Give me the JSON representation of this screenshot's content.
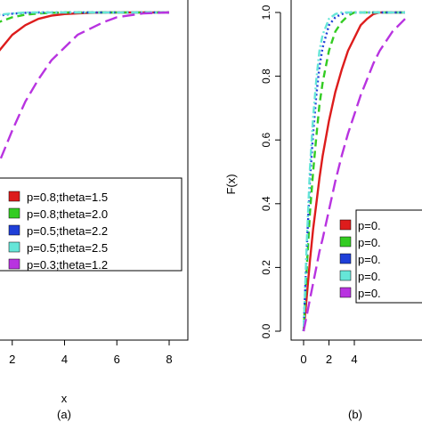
{
  "chart_data": [
    {
      "panel_label": "(a)",
      "type": "line",
      "xlabel": "x",
      "ylabel": "",
      "xlim": [
        0,
        8
      ],
      "ylim": [
        0,
        1
      ],
      "xticks": [
        "2",
        "4",
        "6",
        "8"
      ],
      "yticks": [],
      "legend_position": "bottom-right",
      "x": [
        0,
        0.25,
        0.5,
        0.75,
        1,
        1.25,
        1.5,
        2,
        2.5,
        3,
        3.5,
        4,
        4.5,
        5,
        5.5,
        6,
        7,
        8
      ],
      "series": [
        {
          "name": "p=0.8;theta=1.5",
          "color": "#dd1c1c",
          "dash": "solid",
          "values": [
            0,
            0.43,
            0.61,
            0.7,
            0.78,
            0.84,
            0.88,
            0.93,
            0.96,
            0.98,
            0.99,
            0.995,
            0.997,
            0.999,
            1.0,
            1.0,
            1.0,
            1.0
          ]
        },
        {
          "name": "p=0.8;theta=2.0",
          "color": "#33cc22",
          "dash": "dashed",
          "values": [
            0,
            0.62,
            0.79,
            0.87,
            0.92,
            0.95,
            0.97,
            0.985,
            0.993,
            0.997,
            0.999,
            1.0,
            1.0,
            1.0,
            1.0,
            1.0,
            1.0,
            1.0
          ]
        },
        {
          "name": "p=0.5;theta=2.2",
          "color": "#1f3fd8",
          "dash": "dotted",
          "values": [
            0,
            0.74,
            0.87,
            0.93,
            0.96,
            0.98,
            0.99,
            0.996,
            0.999,
            1.0,
            1.0,
            1.0,
            1.0,
            1.0,
            1.0,
            1.0,
            1.0,
            1.0
          ]
        },
        {
          "name": "p=0.5;theta=2.5",
          "color": "#66e6d8",
          "dash": "dotdash",
          "values": [
            0,
            0.77,
            0.89,
            0.94,
            0.97,
            0.985,
            0.993,
            0.997,
            1.0,
            1.0,
            1.0,
            1.0,
            1.0,
            1.0,
            1.0,
            1.0,
            1.0,
            1.0
          ]
        },
        {
          "name": "p=0.3;theta=1.2",
          "color": "#b833e0",
          "dash": "longdash",
          "values": [
            0,
            0.14,
            0.25,
            0.33,
            0.4,
            0.47,
            0.53,
            0.63,
            0.72,
            0.79,
            0.85,
            0.89,
            0.93,
            0.95,
            0.97,
            0.985,
            0.997,
            1.0
          ]
        }
      ]
    },
    {
      "panel_label": "(b)",
      "type": "line",
      "xlabel": "",
      "ylabel": "F(x)",
      "xlim": [
        0,
        8
      ],
      "ylim": [
        0,
        1
      ],
      "xticks": [
        "0",
        "2",
        "4"
      ],
      "yticks": [
        "0.0",
        "0.2",
        "0.4",
        "0.6",
        "0.8",
        "1.0"
      ],
      "legend_position": "bottom-right",
      "x": [
        0,
        0.25,
        0.5,
        0.75,
        1,
        1.25,
        1.5,
        2,
        2.5,
        3,
        3.5,
        4,
        4.5,
        5,
        5.5,
        6,
        7,
        8
      ],
      "series": [
        {
          "name": "p=0.",
          "color": "#dd1c1c",
          "dash": "solid",
          "values": [
            0,
            0.11,
            0.22,
            0.32,
            0.4,
            0.48,
            0.55,
            0.66,
            0.75,
            0.82,
            0.88,
            0.92,
            0.96,
            0.98,
            0.995,
            1.0,
            1.0,
            1.0
          ]
        },
        {
          "name": "p=0.",
          "color": "#33cc22",
          "dash": "dashed",
          "values": [
            0,
            0.2,
            0.37,
            0.5,
            0.61,
            0.71,
            0.78,
            0.88,
            0.94,
            0.97,
            0.99,
            1.0,
            1.0,
            1.0,
            1.0,
            1.0,
            1.0,
            1.0
          ]
        },
        {
          "name": "p=0.",
          "color": "#1f3fd8",
          "dash": "dotted",
          "values": [
            0,
            0.26,
            0.47,
            0.62,
            0.74,
            0.83,
            0.89,
            0.96,
            0.985,
            0.995,
            1.0,
            1.0,
            1.0,
            1.0,
            1.0,
            1.0,
            1.0,
            1.0
          ]
        },
        {
          "name": "p=0.",
          "color": "#66e6d8",
          "dash": "dotdash",
          "values": [
            0,
            0.28,
            0.51,
            0.67,
            0.79,
            0.88,
            0.93,
            0.98,
            0.995,
            1.0,
            1.0,
            1.0,
            1.0,
            1.0,
            1.0,
            1.0,
            1.0,
            1.0
          ]
        },
        {
          "name": "p=0.",
          "color": "#b833e0",
          "dash": "longdash",
          "values": [
            0,
            0.05,
            0.1,
            0.15,
            0.2,
            0.25,
            0.29,
            0.38,
            0.47,
            0.55,
            0.62,
            0.68,
            0.74,
            0.79,
            0.84,
            0.88,
            0.94,
            0.98
          ]
        }
      ]
    }
  ]
}
